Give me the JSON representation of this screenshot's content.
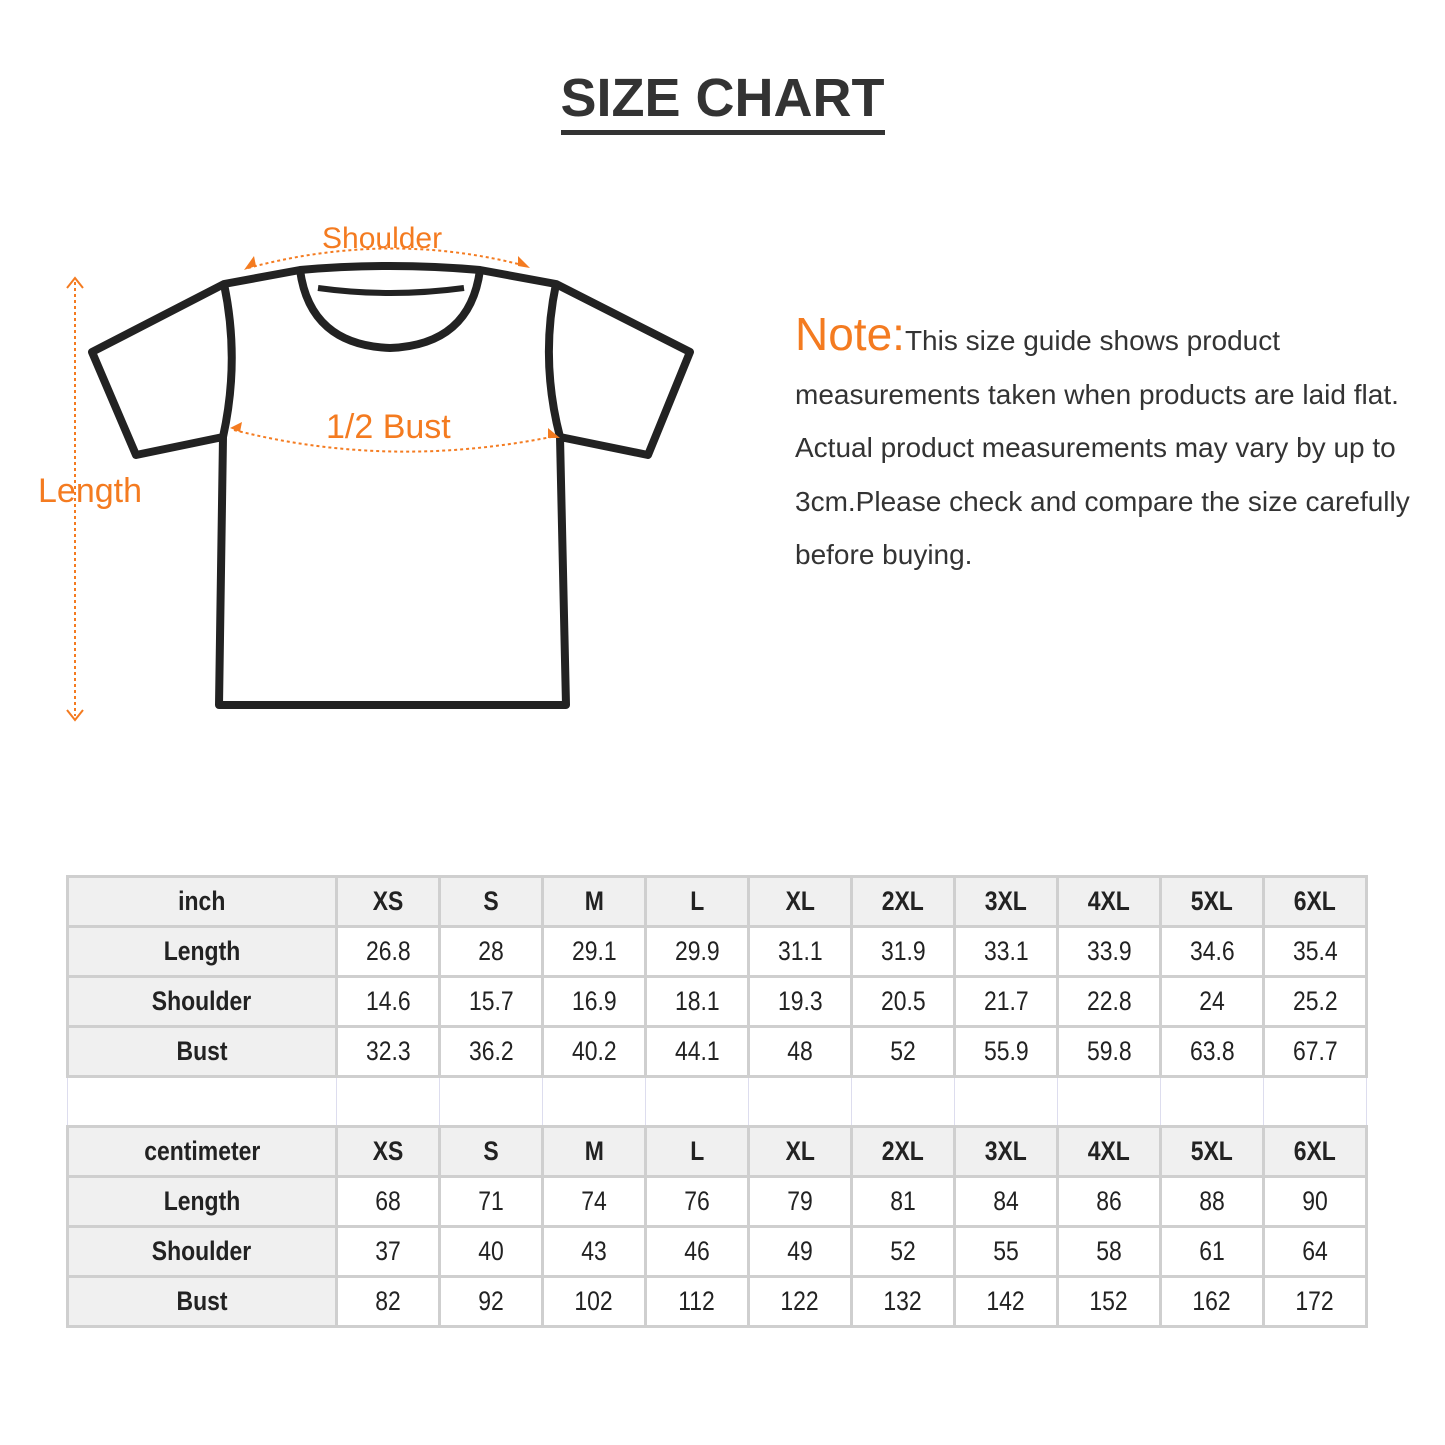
{
  "title": "SIZE CHART",
  "diagram": {
    "shoulder": "Shoulder",
    "bust": "1/2 Bust",
    "length": "Length"
  },
  "note": {
    "heading": "Note:",
    "text": "This size guide shows product measurements taken when products are laid flat. Actual product measurements may vary by up to 3cm.Please check and compare the size carefully before buying."
  },
  "colors": {
    "accent": "#f47b20",
    "header_bg": "#f0f0f0",
    "border": "#cfcfcf"
  },
  "tables": [
    {
      "unit": "inch",
      "sizes": [
        "XS",
        "S",
        "M",
        "L",
        "XL",
        "2XL",
        "3XL",
        "4XL",
        "5XL",
        "6XL"
      ],
      "rows": [
        {
          "label": "Length",
          "values": [
            "26.8",
            "28",
            "29.1",
            "29.9",
            "31.1",
            "31.9",
            "33.1",
            "33.9",
            "34.6",
            "35.4"
          ]
        },
        {
          "label": "Shoulder",
          "values": [
            "14.6",
            "15.7",
            "16.9",
            "18.1",
            "19.3",
            "20.5",
            "21.7",
            "22.8",
            "24",
            "25.2"
          ]
        },
        {
          "label": "Bust",
          "values": [
            "32.3",
            "36.2",
            "40.2",
            "44.1",
            "48",
            "52",
            "55.9",
            "59.8",
            "63.8",
            "67.7"
          ]
        }
      ]
    },
    {
      "unit": "centimeter",
      "sizes": [
        "XS",
        "S",
        "M",
        "L",
        "XL",
        "2XL",
        "3XL",
        "4XL",
        "5XL",
        "6XL"
      ],
      "rows": [
        {
          "label": "Length",
          "values": [
            "68",
            "71",
            "74",
            "76",
            "79",
            "81",
            "84",
            "86",
            "88",
            "90"
          ]
        },
        {
          "label": "Shoulder",
          "values": [
            "37",
            "40",
            "43",
            "46",
            "49",
            "52",
            "55",
            "58",
            "61",
            "64"
          ]
        },
        {
          "label": "Bust",
          "values": [
            "82",
            "92",
            "102",
            "112",
            "122",
            "132",
            "142",
            "152",
            "162",
            "172"
          ]
        }
      ]
    }
  ]
}
